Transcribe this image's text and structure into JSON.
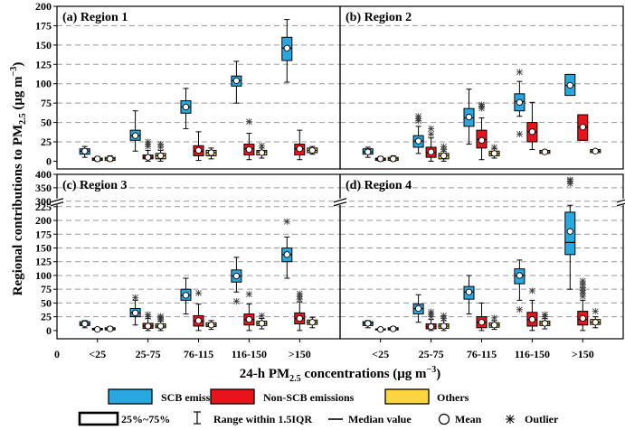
{
  "figure": {
    "y_axis_title": "Regional contributions to PM",
    "y_axis_title_sub": "2.5",
    "y_axis_title_unit": " (μg m",
    "y_axis_title_unit_sup": "−3",
    "y_axis_title_close": ")",
    "x_axis_title": "24-h PM",
    "x_axis_title_sub": "2.5",
    "x_axis_title_unit": " concentrations (μg m",
    "x_axis_title_unit_sup": "−3",
    "x_axis_title_close": ")",
    "x_zero_label": "0"
  },
  "legend": {
    "scb": {
      "label": "SCB emissions",
      "color": "#29a8e0"
    },
    "nonscb": {
      "label": "Non-SCB emissions",
      "color": "#e8141b"
    },
    "others": {
      "label": "Others",
      "color": "#fbd640"
    },
    "box_label": "25%~75%",
    "whisker_label": "Range within 1.5IQR",
    "median_label": "Median value",
    "mean_label": "Mean",
    "outlier_label": "Outlier"
  },
  "chart_data": [
    {
      "type": "box",
      "title": "(a) Region 1",
      "categories": [
        "<25",
        "25-75",
        "76-115",
        "116-150",
        ">150"
      ],
      "ylim": [
        -10,
        200
      ],
      "yticks": [
        0,
        25,
        50,
        75,
        100,
        125,
        150,
        175,
        200
      ],
      "grid": true,
      "series": [
        {
          "name": "SCB emissions",
          "boxes": [
            {
              "q1": 9,
              "q3": 16,
              "median": 13,
              "mean": 13,
              "lo": 5,
              "hi": 19,
              "outliers": []
            },
            {
              "q1": 27,
              "q3": 40,
              "median": 33,
              "mean": 33,
              "lo": 13,
              "hi": 65,
              "outliers": []
            },
            {
              "q1": 62,
              "q3": 78,
              "median": 70,
              "mean": 70,
              "lo": 42,
              "hi": 94,
              "outliers": []
            },
            {
              "q1": 97,
              "q3": 110,
              "median": 104,
              "mean": 104,
              "lo": 75,
              "hi": 129,
              "outliers": []
            },
            {
              "q1": 130,
              "q3": 160,
              "median": 146,
              "mean": 146,
              "lo": 102,
              "hi": 183,
              "outliers": []
            }
          ]
        },
        {
          "name": "Non-SCB emissions",
          "boxes": [
            {
              "q1": 1,
              "q3": 4,
              "median": 3,
              "mean": 3,
              "lo": 0,
              "hi": 6,
              "outliers": []
            },
            {
              "q1": 3,
              "q3": 8,
              "median": 5,
              "mean": 5,
              "lo": 0,
              "hi": 14,
              "outliers": [
                19,
                22,
                25
              ]
            },
            {
              "q1": 7,
              "q3": 20,
              "median": 13,
              "mean": 14,
              "lo": 1,
              "hi": 38,
              "outliers": []
            },
            {
              "q1": 8,
              "q3": 22,
              "median": 16,
              "mean": 15,
              "lo": 2,
              "hi": 36,
              "outliers": [
                51
              ]
            },
            {
              "q1": 8,
              "q3": 22,
              "median": 16,
              "mean": 16,
              "lo": 2,
              "hi": 40,
              "outliers": []
            }
          ]
        },
        {
          "name": "Others",
          "boxes": [
            {
              "q1": 1,
              "q3": 5,
              "median": 3,
              "mean": 3,
              "lo": 0,
              "hi": 7,
              "outliers": []
            },
            {
              "q1": 3,
              "q3": 10,
              "median": 7,
              "mean": 7,
              "lo": 0,
              "hi": 14,
              "outliers": [
                18,
                22
              ]
            },
            {
              "q1": 7,
              "q3": 14,
              "median": 11,
              "mean": 11,
              "lo": 3,
              "hi": 17,
              "outliers": []
            },
            {
              "q1": 8,
              "q3": 14,
              "median": 12,
              "mean": 11,
              "lo": 4,
              "hi": 17,
              "outliers": [
                20
              ]
            },
            {
              "q1": 11,
              "q3": 17,
              "median": 14,
              "mean": 14,
              "lo": 9,
              "hi": 19,
              "outliers": []
            }
          ]
        }
      ]
    },
    {
      "type": "box",
      "title": "(b) Region 2",
      "categories": [
        "<25",
        "25-75",
        "76-115",
        "116-150",
        ">150"
      ],
      "ylim": [
        -10,
        200
      ],
      "yticks": [
        0,
        25,
        50,
        75,
        100,
        125,
        150,
        175,
        200
      ],
      "grid": true,
      "series": [
        {
          "name": "SCB emissions",
          "boxes": [
            {
              "q1": 9,
              "q3": 16,
              "median": 12,
              "mean": 12,
              "lo": 5,
              "hi": 18,
              "outliers": []
            },
            {
              "q1": 18,
              "q3": 33,
              "median": 26,
              "mean": 26,
              "lo": 10,
              "hi": 45,
              "outliers": [
                52,
                55,
                58
              ]
            },
            {
              "q1": 45,
              "q3": 68,
              "median": 56,
              "mean": 57,
              "lo": 22,
              "hi": 93,
              "outliers": []
            },
            {
              "q1": 65,
              "q3": 87,
              "median": 77,
              "mean": 76,
              "lo": 58,
              "hi": 103,
              "outliers": [
                35,
                115
              ]
            },
            {
              "q1": 85,
              "q3": 112,
              "median": 98,
              "mean": 98,
              "lo": 85,
              "hi": 112,
              "outliers": []
            }
          ]
        },
        {
          "name": "Non-SCB emissions",
          "boxes": [
            {
              "q1": 1,
              "q3": 4,
              "median": 3,
              "mean": 3,
              "lo": 0,
              "hi": 6,
              "outliers": []
            },
            {
              "q1": 5,
              "q3": 18,
              "median": 11,
              "mean": 12,
              "lo": 0,
              "hi": 30,
              "outliers": [
                35,
                42
              ]
            },
            {
              "q1": 17,
              "q3": 40,
              "median": 28,
              "mean": 27,
              "lo": 2,
              "hi": 56,
              "outliers": [
                68,
                71,
                73
              ]
            },
            {
              "q1": 25,
              "q3": 50,
              "median": 38,
              "mean": 38,
              "lo": 15,
              "hi": 76,
              "outliers": []
            },
            {
              "q1": 27,
              "q3": 60,
              "median": 44,
              "mean": 44,
              "lo": 27,
              "hi": 60,
              "outliers": []
            }
          ]
        },
        {
          "name": "Others",
          "boxes": [
            {
              "q1": 1,
              "q3": 5,
              "median": 3,
              "mean": 3,
              "lo": 0,
              "hi": 7,
              "outliers": []
            },
            {
              "q1": 3,
              "q3": 10,
              "median": 7,
              "mean": 7,
              "lo": 0,
              "hi": 13,
              "outliers": [
                15,
                19
              ]
            },
            {
              "q1": 7,
              "q3": 13,
              "median": 10,
              "mean": 10,
              "lo": 4,
              "hi": 16,
              "outliers": [
                18
              ]
            },
            {
              "q1": 10,
              "q3": 14,
              "median": 12,
              "mean": 12,
              "lo": 10,
              "hi": 14,
              "outliers": []
            },
            {
              "q1": 11,
              "q3": 15,
              "median": 13,
              "mean": 13,
              "lo": 11,
              "hi": 15,
              "outliers": []
            }
          ]
        }
      ]
    },
    {
      "type": "box",
      "title": "(c) Region 3",
      "categories": [
        "<25",
        "25-75",
        "76-115",
        "116-150",
        ">150"
      ],
      "ylim": [
        -15,
        400
      ],
      "yticks": [
        0,
        25,
        50,
        75,
        100,
        125,
        150,
        175,
        200,
        225,
        300,
        350,
        400
      ],
      "axis_break": [
        230,
        290
      ],
      "grid": true,
      "series": [
        {
          "name": "SCB emissions",
          "boxes": [
            {
              "q1": 9,
              "q3": 16,
              "median": 12,
              "mean": 12,
              "lo": 5,
              "hi": 18,
              "outliers": []
            },
            {
              "q1": 25,
              "q3": 40,
              "median": 32,
              "mean": 32,
              "lo": 10,
              "hi": 55,
              "outliers": [
                60
              ]
            },
            {
              "q1": 55,
              "q3": 75,
              "median": 64,
              "mean": 64,
              "lo": 30,
              "hi": 95,
              "outliers": []
            },
            {
              "q1": 88,
              "q3": 110,
              "median": 99,
              "mean": 99,
              "lo": 70,
              "hi": 133,
              "outliers": [
                53
              ]
            },
            {
              "q1": 125,
              "q3": 150,
              "median": 138,
              "mean": 138,
              "lo": 95,
              "hi": 170,
              "outliers": [
                198
              ]
            }
          ]
        },
        {
          "name": "Non-SCB emissions",
          "boxes": [
            {
              "q1": 1,
              "q3": 4,
              "median": 2,
              "mean": 2,
              "lo": 0,
              "hi": 5,
              "outliers": []
            },
            {
              "q1": 4,
              "q3": 13,
              "median": 8,
              "mean": 8,
              "lo": 0,
              "hi": 22,
              "outliers": [
                25,
                29
              ]
            },
            {
              "q1": 8,
              "q3": 27,
              "median": 17,
              "mean": 18,
              "lo": 0,
              "hi": 48,
              "outliers": [
                68
              ]
            },
            {
              "q1": 10,
              "q3": 30,
              "median": 20,
              "mean": 20,
              "lo": 0,
              "hi": 48,
              "outliers": [
                66
              ]
            },
            {
              "q1": 12,
              "q3": 32,
              "median": 22,
              "mean": 22,
              "lo": 0,
              "hi": 52,
              "outliers": [
                57,
                62,
                67
              ]
            }
          ]
        },
        {
          "name": "Others",
          "boxes": [
            {
              "q1": 1,
              "q3": 5,
              "median": 3,
              "mean": 3,
              "lo": 0,
              "hi": 7,
              "outliers": []
            },
            {
              "q1": 5,
              "q3": 12,
              "median": 8,
              "mean": 8,
              "lo": 0,
              "hi": 17,
              "outliers": [
                20,
                23,
                26
              ]
            },
            {
              "q1": 7,
              "q3": 14,
              "median": 10,
              "mean": 10,
              "lo": 2,
              "hi": 18,
              "outliers": []
            },
            {
              "q1": 9,
              "q3": 17,
              "median": 13,
              "mean": 13,
              "lo": 3,
              "hi": 22,
              "outliers": [
                27
              ]
            },
            {
              "q1": 11,
              "q3": 19,
              "median": 15,
              "mean": 15,
              "lo": 5,
              "hi": 24,
              "outliers": []
            }
          ]
        }
      ]
    },
    {
      "type": "box",
      "title": "(d) Region 4",
      "categories": [
        "<25",
        "25-75",
        "76-115",
        "116-150",
        ">150"
      ],
      "ylim": [
        -15,
        400
      ],
      "yticks": [
        0,
        25,
        50,
        75,
        100,
        125,
        150,
        175,
        200,
        225,
        300,
        350,
        400
      ],
      "axis_break": [
        230,
        290
      ],
      "grid": true,
      "series": [
        {
          "name": "SCB emissions",
          "boxes": [
            {
              "q1": 9,
              "q3": 16,
              "median": 13,
              "mean": 13,
              "lo": 5,
              "hi": 18,
              "outliers": []
            },
            {
              "q1": 30,
              "q3": 48,
              "median": 40,
              "mean": 40,
              "lo": 15,
              "hi": 65,
              "outliers": []
            },
            {
              "q1": 57,
              "q3": 80,
              "median": 70,
              "mean": 70,
              "lo": 30,
              "hi": 100,
              "outliers": []
            },
            {
              "q1": 85,
              "q3": 112,
              "median": 100,
              "mean": 100,
              "lo": 55,
              "hi": 128,
              "outliers": [
                38
              ]
            },
            {
              "q1": 138,
              "q3": 215,
              "median": 160,
              "mean": 180,
              "lo": 75,
              "hi": 285,
              "outliers": [
                365,
                375,
                380
              ]
            }
          ]
        },
        {
          "name": "Non-SCB emissions",
          "boxes": [
            {
              "q1": 1,
              "q3": 3,
              "median": 2,
              "mean": 2,
              "lo": 0,
              "hi": 5,
              "outliers": []
            },
            {
              "q1": 3,
              "q3": 12,
              "median": 7,
              "mean": 7,
              "lo": 0,
              "hi": 20,
              "outliers": [
                25,
                30,
                34
              ]
            },
            {
              "q1": 5,
              "q3": 25,
              "median": 15,
              "mean": 15,
              "lo": 0,
              "hi": 50,
              "outliers": []
            },
            {
              "q1": 8,
              "q3": 33,
              "median": 20,
              "mean": 20,
              "lo": 0,
              "hi": 55,
              "outliers": [
                72
              ]
            },
            {
              "q1": 10,
              "q3": 35,
              "median": 20,
              "mean": 22,
              "lo": 0,
              "hi": 55,
              "outliers": [
                62,
                68,
                73,
                78,
                84,
                90
              ]
            }
          ]
        },
        {
          "name": "Others",
          "boxes": [
            {
              "q1": 1,
              "q3": 5,
              "median": 3,
              "mean": 3,
              "lo": 0,
              "hi": 7,
              "outliers": []
            },
            {
              "q1": 4,
              "q3": 12,
              "median": 8,
              "mean": 8,
              "lo": 0,
              "hi": 18,
              "outliers": [
                22,
                27
              ]
            },
            {
              "q1": 6,
              "q3": 14,
              "median": 10,
              "mean": 10,
              "lo": 2,
              "hi": 18,
              "outliers": [
                23
              ]
            },
            {
              "q1": 9,
              "q3": 17,
              "median": 13,
              "mean": 13,
              "lo": 3,
              "hi": 22,
              "outliers": [
                25,
                29
              ]
            },
            {
              "q1": 11,
              "q3": 20,
              "median": 15,
              "mean": 15,
              "lo": 5,
              "hi": 25,
              "outliers": [
                35
              ]
            }
          ]
        }
      ]
    }
  ]
}
